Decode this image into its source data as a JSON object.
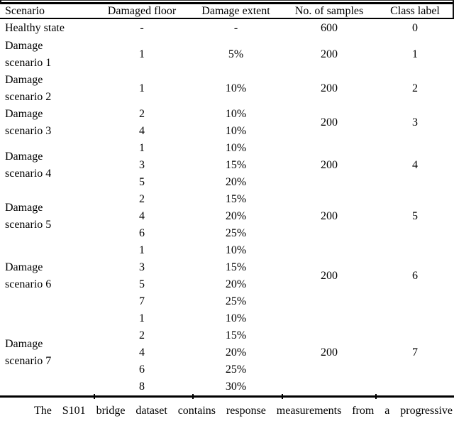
{
  "table": {
    "columns": [
      "Scenario",
      "Damaged floor",
      "Damage extent",
      "No. of samples",
      "Class label"
    ],
    "rows": [
      {
        "scenario_lines": [
          "Healthy state"
        ],
        "floors": [
          "-"
        ],
        "extents": [
          "-"
        ],
        "samples": "600",
        "class_label": "0"
      },
      {
        "scenario_lines": [
          "Damage",
          "scenario 1"
        ],
        "floors": [
          "1"
        ],
        "extents": [
          "5%"
        ],
        "samples": "200",
        "class_label": "1"
      },
      {
        "scenario_lines": [
          "Damage",
          "scenario 2"
        ],
        "floors": [
          "1"
        ],
        "extents": [
          "10%"
        ],
        "samples": "200",
        "class_label": "2"
      },
      {
        "scenario_lines": [
          "Damage",
          "scenario 3"
        ],
        "floors": [
          "2",
          "4"
        ],
        "extents": [
          "10%",
          "10%"
        ],
        "samples": "200",
        "class_label": "3"
      },
      {
        "scenario_lines": [
          "Damage",
          "scenario 4"
        ],
        "floors": [
          "1",
          "3",
          "5"
        ],
        "extents": [
          "10%",
          "15%",
          "20%"
        ],
        "samples": "200",
        "class_label": "4"
      },
      {
        "scenario_lines": [
          "Damage",
          "scenario 5"
        ],
        "floors": [
          "2",
          "4",
          "6"
        ],
        "extents": [
          "15%",
          "20%",
          "25%"
        ],
        "samples": "200",
        "class_label": "5"
      },
      {
        "scenario_lines": [
          "Damage",
          "scenario 6"
        ],
        "floors": [
          "1",
          "3",
          "5",
          "7"
        ],
        "extents": [
          "10%",
          "15%",
          "20%",
          "25%"
        ],
        "samples": "200",
        "class_label": "6"
      },
      {
        "scenario_lines": [
          "Damage",
          "scenario 7"
        ],
        "floors": [
          "1",
          "2",
          "4",
          "6",
          "8"
        ],
        "extents": [
          "10%",
          "15%",
          "20%",
          "25%",
          "30%"
        ],
        "samples": "200",
        "class_label": "7"
      }
    ]
  },
  "paragraph": "The S101 bridge dataset contains response measurements from a progressive",
  "colors": {
    "text": "#000000",
    "background": "#ffffff",
    "rule": "#000000"
  }
}
